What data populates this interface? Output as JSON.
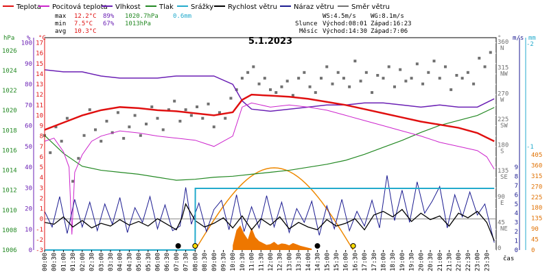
{
  "chart_data": {
    "type": "line",
    "title": "5.1.2023",
    "legend": [
      {
        "key": "teplota",
        "label": "Teplota",
        "color": "#e01010"
      },
      {
        "key": "pocitova",
        "label": "Pocitová teplota",
        "color": "#cc22cc"
      },
      {
        "key": "vlhkost",
        "label": "Vlhkost",
        "color": "#6a1fb4"
      },
      {
        "key": "tlak",
        "label": "Tlak",
        "color": "#228822"
      },
      {
        "key": "srazky",
        "label": "Srážky",
        "color": "#22aacc"
      },
      {
        "key": "rychlost",
        "label": "Rychlost větru",
        "color": "#000000"
      },
      {
        "key": "naraz",
        "label": "Náraz větru",
        "color": "#1a1a90"
      },
      {
        "key": "smer",
        "label": "Směr větru",
        "color": "#707070"
      }
    ],
    "stats": {
      "max_label": "max",
      "max_temp": "12.2°C",
      "max_hum": "89%",
      "max_press": "1020.7hPa",
      "rain_total": "0.6mm",
      "min_label": "min",
      "min_temp": "7.5°C",
      "min_hum": "67%",
      "min_press": "1013hPa",
      "avg_label": "avg",
      "avg_temp": "10.3°C"
    },
    "info": {
      "ws": "WS:4.5m/s",
      "wg": "WG:8.1m/s",
      "sun_label": "Slunce",
      "sun_rise": "Východ:08:01",
      "sun_set": "Západ:16:23",
      "moon_label": "Měsíc",
      "moon_rise": "Východ:14:30",
      "moon_set": "Západ:7:06"
    },
    "axes": {
      "press_unit": "hPa",
      "hum_unit": "%",
      "temp_unit": "°C",
      "dir_unit": "°",
      "wind_unit": "m/s",
      "rain_unit": "mm",
      "x_unit": "čas",
      "press_range": [
        1006,
        1027.3
      ],
      "hum_range": [
        0,
        102.5
      ],
      "temp_range": [
        -3,
        17.5
      ],
      "press_ticks": [
        1006,
        1008,
        1010,
        1012,
        1014,
        1016,
        1018,
        1020,
        1022,
        1024,
        1026
      ],
      "hum_ticks": [
        0,
        10,
        20,
        30,
        40,
        50,
        60,
        70,
        80,
        90,
        100
      ],
      "temp_ticks": [
        -3,
        -2,
        -1,
        0,
        1,
        2,
        3,
        4,
        5,
        6,
        7,
        8,
        9,
        10,
        11,
        12,
        13,
        14,
        15,
        16,
        17
      ],
      "dir_ticks": [
        "360 N",
        "315 NW",
        "270 W",
        "225 SW",
        "180 S",
        "135 SE",
        "90 E",
        "45 NE",
        "0"
      ],
      "wind_ticks": [
        0,
        1,
        2,
        3,
        4,
        5,
        6,
        7,
        8,
        9
      ],
      "wind_outer_ticks": [
        -2,
        -1
      ],
      "rain_ticks": [
        0,
        45,
        90,
        135,
        180,
        225,
        270,
        315,
        360,
        405
      ],
      "time_labels": [
        "00:00",
        "00:30",
        "01:00",
        "01:30",
        "02:00",
        "02:30",
        "03:00",
        "03:30",
        "04:00",
        "04:30",
        "05:00",
        "05:30",
        "06:00",
        "06:30",
        "07:00",
        "07:30",
        "08:00",
        "08:30",
        "09:00",
        "09:30",
        "10:00",
        "10:30",
        "11:00",
        "11:30",
        "12:00",
        "12:30",
        "13:00",
        "13:30",
        "14:00",
        "14:30",
        "15:00",
        "15:30",
        "16:00",
        "16:30",
        "17:00",
        "17:30",
        "18:00",
        "18:30",
        "19:00",
        "19:30",
        "20:00",
        "20:30",
        "21:00",
        "21:30",
        "22:00",
        "22:30",
        "23:00",
        "23:30"
      ]
    },
    "series": {
      "teplota": {
        "t": [
          0,
          1,
          2,
          3,
          4,
          5,
          6,
          7,
          8,
          9,
          10,
          10.5,
          11,
          12,
          13,
          14,
          15,
          16,
          17,
          18,
          19,
          20,
          21,
          22,
          23,
          23.9
        ],
        "v": [
          8.6,
          9.3,
          10.0,
          10.5,
          10.8,
          10.7,
          10.5,
          10.4,
          10.2,
          10.0,
          10.3,
          11.5,
          12.0,
          11.9,
          11.8,
          11.6,
          11.3,
          11.0,
          10.6,
          10.2,
          9.8,
          9.4,
          9.1,
          8.8,
          8.3,
          7.5
        ]
      },
      "pocitova": {
        "t": [
          0,
          0.5,
          1,
          1.3,
          1.45,
          1.6,
          2,
          2.5,
          3,
          4,
          5,
          6,
          7,
          8,
          8.5,
          9,
          10,
          10.5,
          11,
          12,
          13,
          14,
          15,
          16,
          17,
          18,
          19,
          20,
          21,
          22,
          23,
          23.5,
          23.9
        ],
        "v": [
          7.5,
          7.8,
          6.5,
          5.0,
          -1.5,
          4.5,
          6.2,
          7.5,
          8.0,
          8.5,
          8.3,
          8.0,
          7.8,
          7.6,
          7.3,
          7.0,
          8.0,
          10.8,
          11.2,
          10.8,
          11.0,
          10.8,
          10.5,
          10.0,
          9.5,
          9.0,
          8.5,
          8.0,
          7.4,
          7.0,
          6.6,
          6.0,
          4.8
        ]
      },
      "vlhkost": {
        "t": [
          0,
          1,
          2,
          3,
          4,
          5,
          6,
          7,
          8,
          9,
          10,
          10.5,
          11,
          12,
          13,
          14,
          15,
          16,
          17,
          18,
          19,
          20,
          21,
          22,
          23,
          23.9
        ],
        "v": [
          87,
          86,
          86,
          84,
          83,
          83,
          83,
          84,
          84,
          84,
          80,
          72,
          68,
          67,
          68,
          69,
          70,
          70,
          71,
          71,
          70,
          69,
          70,
          69,
          69,
          73
        ]
      },
      "tlak": {
        "t": [
          0,
          1,
          2,
          3,
          4,
          5,
          6,
          7,
          8,
          9,
          10,
          11,
          12,
          13,
          14,
          15,
          16,
          17,
          18,
          19,
          20,
          21,
          22,
          23,
          23.9
        ],
        "v": [
          1017.5,
          1015.7,
          1014.4,
          1014.0,
          1013.8,
          1013.6,
          1013.3,
          1013.0,
          1013.1,
          1013.3,
          1013.4,
          1013.6,
          1013.8,
          1014.0,
          1014.3,
          1014.6,
          1015.0,
          1015.6,
          1016.3,
          1017.0,
          1017.8,
          1018.5,
          1019.0,
          1019.5,
          1020.3
        ]
      },
      "srazky": {
        "t": [
          0,
          8.0,
          8.01,
          23.9
        ],
        "v": [
          0,
          0,
          0.6,
          0.6
        ],
        "max": 0.6
      },
      "rychlost": {
        "t": [
          0,
          0.5,
          1,
          1.5,
          2,
          2.5,
          3,
          3.5,
          4,
          4.5,
          5,
          5.5,
          6,
          6.5,
          7,
          7.3,
          7.5,
          8,
          8.5,
          9,
          9.5,
          10,
          10.5,
          11,
          11.5,
          12,
          12.5,
          13,
          13.5,
          14,
          14.5,
          15,
          15.5,
          16,
          16.5,
          17,
          17.5,
          18,
          18.5,
          19,
          19.5,
          20,
          20.5,
          21,
          21.5,
          22,
          22.5,
          23,
          23.5,
          23.9
        ],
        "v": [
          3.0,
          2.8,
          3.6,
          2.5,
          3.2,
          2.4,
          2.9,
          2.6,
          3.3,
          2.7,
          3.1,
          2.6,
          3.4,
          2.8,
          2.2,
          3.5,
          5.0,
          3.2,
          2.5,
          2.9,
          3.5,
          2.4,
          3.7,
          2.2,
          3.4,
          2.7,
          3.6,
          2.3,
          3.0,
          2.5,
          2.2,
          3.3,
          2.6,
          2.9,
          3.4,
          2.2,
          3.8,
          4.2,
          3.6,
          4.4,
          3.1,
          4.0,
          3.3,
          3.7,
          2.6,
          4.0,
          3.5,
          4.2,
          3.0,
          1.0
        ]
      },
      "naraz": {
        "t": [
          0,
          0.4,
          0.8,
          1.2,
          1.6,
          2,
          2.4,
          2.8,
          3.2,
          3.6,
          4,
          4.4,
          4.8,
          5.2,
          5.6,
          6,
          6.4,
          6.8,
          7.2,
          7.5,
          7.8,
          8.2,
          8.6,
          9,
          9.4,
          9.8,
          10.2,
          10.6,
          11,
          11.4,
          11.8,
          12.2,
          12.6,
          13,
          13.4,
          13.8,
          14.2,
          14.6,
          15,
          15.4,
          15.8,
          16.2,
          16.6,
          17,
          17.4,
          17.8,
          18.2,
          18.6,
          19,
          19.4,
          19.8,
          20.2,
          20.6,
          21,
          21.4,
          21.8,
          22.2,
          22.6,
          23,
          23.4,
          23.9
        ],
        "v": [
          4.2,
          2.5,
          5.8,
          1.8,
          5.5,
          2.5,
          5.2,
          2.1,
          5.0,
          2.8,
          5.7,
          1.9,
          4.6,
          3.0,
          5.8,
          2.3,
          4.9,
          2.1,
          2.6,
          6.8,
          2.8,
          5.1,
          2.0,
          4.4,
          5.4,
          2.2,
          6.0,
          2.0,
          4.7,
          2.4,
          5.9,
          2.5,
          5.2,
          1.9,
          4.5,
          3.0,
          5.3,
          1.6,
          4.8,
          2.3,
          5.5,
          2.1,
          4.2,
          2.6,
          5.4,
          2.4,
          8.1,
          3.2,
          6.5,
          3.0,
          7.4,
          4.0,
          5.3,
          6.9,
          2.4,
          6.0,
          3.6,
          6.3,
          3.8,
          5.0,
          0.8
        ]
      },
      "smer": {
        "t": [
          0,
          0.3,
          0.6,
          0.9,
          1.2,
          1.5,
          1.8,
          2.1,
          2.4,
          2.7,
          3.0,
          3.3,
          3.6,
          3.9,
          4.2,
          4.5,
          4.8,
          5.1,
          5.4,
          5.7,
          6.0,
          6.3,
          6.6,
          6.9,
          7.2,
          7.5,
          7.8,
          8.1,
          8.4,
          8.7,
          9.0,
          9.3,
          9.6,
          9.9,
          10.2,
          10.5,
          10.8,
          11.1,
          11.4,
          11.7,
          12.0,
          12.3,
          12.6,
          12.9,
          13.2,
          13.5,
          13.8,
          14.1,
          14.4,
          14.7,
          15.0,
          15.3,
          15.6,
          15.9,
          16.2,
          16.5,
          16.8,
          17.1,
          17.4,
          17.7,
          18.0,
          18.3,
          18.6,
          18.9,
          19.2,
          19.5,
          19.8,
          20.1,
          20.4,
          20.7,
          21.0,
          21.3,
          21.6,
          21.9,
          22.2,
          22.5,
          22.8,
          23.1,
          23.4,
          23.7
        ],
        "v": [
          200,
          170,
          215,
          190,
          230,
          120,
          160,
          200,
          245,
          210,
          190,
          225,
          205,
          240,
          195,
          215,
          235,
          200,
          220,
          250,
          230,
          210,
          245,
          260,
          225,
          245,
          235,
          250,
          230,
          255,
          215,
          240,
          230,
          265,
          280,
          300,
          310,
          320,
          290,
          300,
          280,
          275,
          285,
          295,
          270,
          300,
          310,
          285,
          275,
          300,
          320,
          290,
          310,
          300,
          285,
          330,
          295,
          310,
          275,
          305,
          300,
          320,
          285,
          315,
          295,
          300,
          325,
          290,
          310,
          330,
          300,
          320,
          280,
          305,
          300,
          310,
          290,
          335,
          320,
          345
        ]
      }
    },
    "sun_curve": {
      "rise": 8.0,
      "set": 16.4
    },
    "rain_bars": {
      "t": [
        10.0,
        10.2,
        10.4,
        10.6,
        10.8,
        11.0,
        11.2,
        11.4,
        11.6,
        11.8,
        12.0,
        12.2,
        12.4,
        12.6,
        12.8,
        13.0,
        13.2,
        13.4,
        13.6,
        13.8,
        14.0,
        14.2
      ],
      "v": [
        20,
        85,
        105,
        70,
        45,
        95,
        55,
        38,
        30,
        22,
        25,
        35,
        22,
        28,
        26,
        20,
        30,
        24,
        18,
        14,
        10,
        6
      ]
    },
    "markers": [
      {
        "t": 7.1,
        "type": "moon-set",
        "color": "#000000"
      },
      {
        "t": 8.0,
        "type": "sun-rise",
        "color": "#ffdd00"
      },
      {
        "t": 14.5,
        "type": "moon-rise",
        "color": "#000000"
      },
      {
        "t": 16.4,
        "type": "sun-set",
        "color": "#ffdd00"
      }
    ]
  }
}
